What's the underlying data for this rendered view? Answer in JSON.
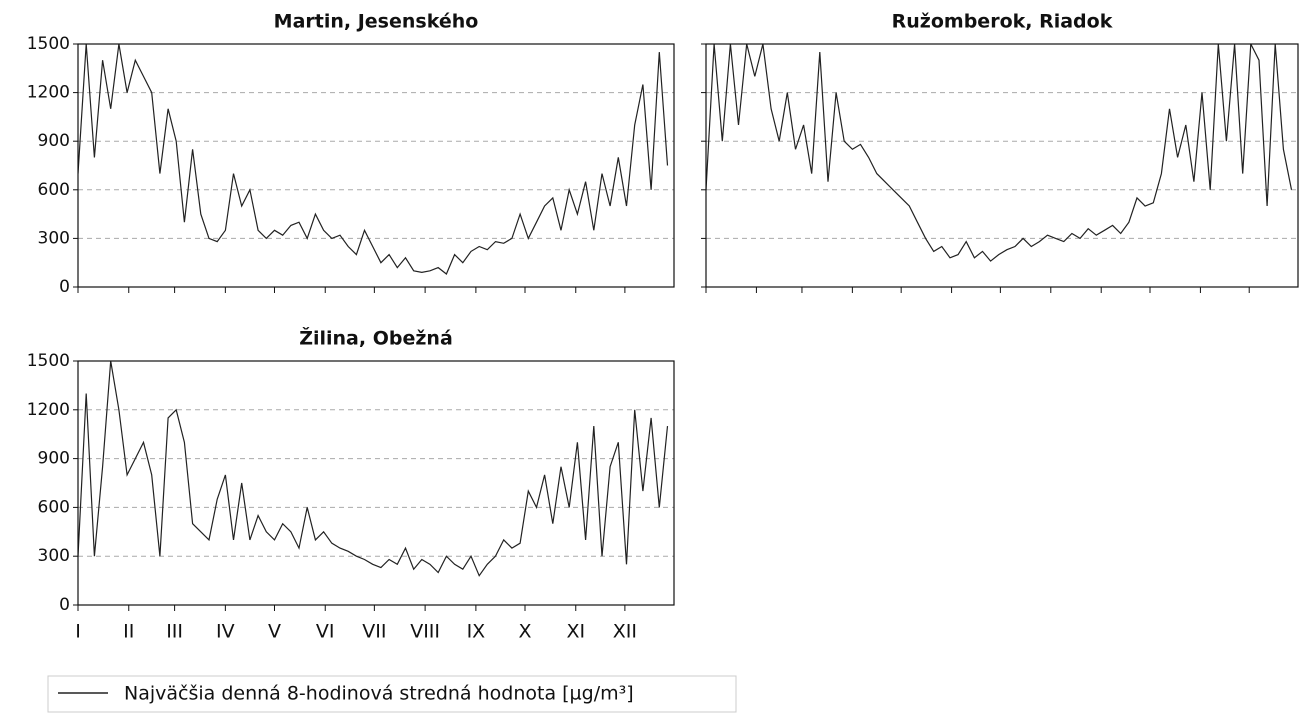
{
  "chart_data": [
    {
      "type": "line",
      "title": "Martin, Jesenského",
      "color": "#222222",
      "grid": true,
      "xlim": [
        1,
        365
      ],
      "xticks": [
        1,
        32,
        60,
        91,
        121,
        152,
        182,
        213,
        244,
        274,
        305,
        335
      ],
      "ylim": [
        0,
        1500
      ],
      "yticks": [
        0,
        300,
        600,
        900,
        1200,
        1500
      ],
      "x": [
        1,
        6,
        11,
        16,
        21,
        26,
        31,
        36,
        41,
        46,
        51,
        56,
        61,
        66,
        71,
        76,
        81,
        86,
        91,
        96,
        101,
        106,
        111,
        116,
        121,
        126,
        131,
        136,
        141,
        146,
        151,
        156,
        161,
        166,
        171,
        176,
        181,
        186,
        191,
        196,
        201,
        206,
        211,
        216,
        221,
        226,
        231,
        236,
        241,
        246,
        251,
        256,
        261,
        266,
        271,
        276,
        281,
        286,
        291,
        296,
        301,
        306,
        311,
        316,
        321,
        326,
        331,
        336,
        341,
        346,
        351,
        356,
        361
      ],
      "values": [
        700,
        1500,
        800,
        1400,
        1100,
        1500,
        1200,
        1400,
        1300,
        1200,
        700,
        1100,
        900,
        400,
        850,
        450,
        300,
        280,
        350,
        700,
        500,
        600,
        350,
        300,
        350,
        320,
        380,
        400,
        300,
        450,
        350,
        300,
        320,
        250,
        200,
        350,
        250,
        150,
        200,
        120,
        180,
        100,
        90,
        100,
        120,
        80,
        200,
        150,
        220,
        250,
        230,
        280,
        270,
        300,
        450,
        300,
        400,
        500,
        550,
        350,
        600,
        450,
        650,
        350,
        700,
        500,
        800,
        500,
        1000,
        1250,
        600,
        1450,
        750
      ]
    },
    {
      "type": "line",
      "title": "Ružomberok, Riadok",
      "color": "#222222",
      "grid": true,
      "xlim": [
        1,
        365
      ],
      "xticks": [
        1,
        32,
        60,
        91,
        121,
        152,
        182,
        213,
        244,
        274,
        305,
        335
      ],
      "ylim": [
        0,
        1500
      ],
      "yticks": [
        0,
        300,
        600,
        900,
        1200,
        1500
      ],
      "x": [
        1,
        6,
        11,
        16,
        21,
        26,
        31,
        36,
        41,
        46,
        51,
        56,
        61,
        66,
        71,
        76,
        81,
        86,
        91,
        96,
        101,
        106,
        111,
        116,
        121,
        126,
        131,
        136,
        141,
        146,
        151,
        156,
        161,
        166,
        171,
        176,
        181,
        186,
        191,
        196,
        201,
        206,
        211,
        216,
        221,
        226,
        231,
        236,
        241,
        246,
        251,
        256,
        261,
        266,
        271,
        276,
        281,
        286,
        291,
        296,
        301,
        306,
        311,
        316,
        321,
        326,
        331,
        336,
        341,
        346,
        351,
        356,
        361
      ],
      "values": [
        600,
        1500,
        900,
        1500,
        1000,
        1500,
        1300,
        1500,
        1100,
        900,
        1200,
        850,
        1000,
        700,
        1450,
        650,
        1200,
        900,
        850,
        880,
        800,
        700,
        650,
        600,
        550,
        500,
        400,
        300,
        220,
        250,
        180,
        200,
        280,
        180,
        220,
        160,
        200,
        230,
        250,
        300,
        250,
        280,
        320,
        300,
        280,
        330,
        300,
        360,
        320,
        350,
        380,
        330,
        400,
        550,
        500,
        520,
        700,
        1100,
        800,
        1000,
        650,
        1200,
        600,
        1500,
        900,
        1500,
        700,
        1500,
        1400,
        500,
        1500,
        850,
        600
      ]
    },
    {
      "type": "line",
      "title": "Žilina, Obežná",
      "color": "#222222",
      "grid": true,
      "xlim": [
        1,
        365
      ],
      "xticks": [
        {
          "value": 1,
          "label": "I"
        },
        {
          "value": 32,
          "label": "II"
        },
        {
          "value": 60,
          "label": "III"
        },
        {
          "value": 91,
          "label": "IV"
        },
        {
          "value": 121,
          "label": "V"
        },
        {
          "value": 152,
          "label": "VI"
        },
        {
          "value": 182,
          "label": "VII"
        },
        {
          "value": 213,
          "label": "VIII"
        },
        {
          "value": 244,
          "label": "IX"
        },
        {
          "value": 274,
          "label": "X"
        },
        {
          "value": 305,
          "label": "XI"
        },
        {
          "value": 335,
          "label": "XII"
        }
      ],
      "ylim": [
        0,
        1500
      ],
      "yticks": [
        0,
        300,
        600,
        900,
        1200,
        1500
      ],
      "x": [
        1,
        6,
        11,
        16,
        21,
        26,
        31,
        36,
        41,
        46,
        51,
        56,
        61,
        66,
        71,
        76,
        81,
        86,
        91,
        96,
        101,
        106,
        111,
        116,
        121,
        126,
        131,
        136,
        141,
        146,
        151,
        156,
        161,
        166,
        171,
        176,
        181,
        186,
        191,
        196,
        201,
        206,
        211,
        216,
        221,
        226,
        231,
        236,
        241,
        246,
        251,
        256,
        261,
        266,
        271,
        276,
        281,
        286,
        291,
        296,
        301,
        306,
        311,
        316,
        321,
        326,
        331,
        336,
        341,
        346,
        351,
        356,
        361
      ],
      "values": [
        300,
        1300,
        300,
        850,
        1500,
        1200,
        800,
        900,
        1000,
        800,
        300,
        1150,
        1200,
        1000,
        500,
        450,
        400,
        650,
        800,
        400,
        750,
        400,
        550,
        450,
        400,
        500,
        450,
        350,
        600,
        400,
        450,
        380,
        350,
        330,
        300,
        280,
        250,
        230,
        280,
        250,
        350,
        220,
        280,
        250,
        200,
        300,
        250,
        220,
        300,
        180,
        250,
        300,
        400,
        350,
        380,
        700,
        600,
        800,
        500,
        850,
        600,
        1000,
        400,
        1100,
        300,
        850,
        1000,
        250,
        1200,
        700,
        1150,
        600,
        1100
      ]
    }
  ],
  "legend": {
    "label": "Najväčšia denná 8-hodinová stredná hodnota [µg/m³]"
  }
}
